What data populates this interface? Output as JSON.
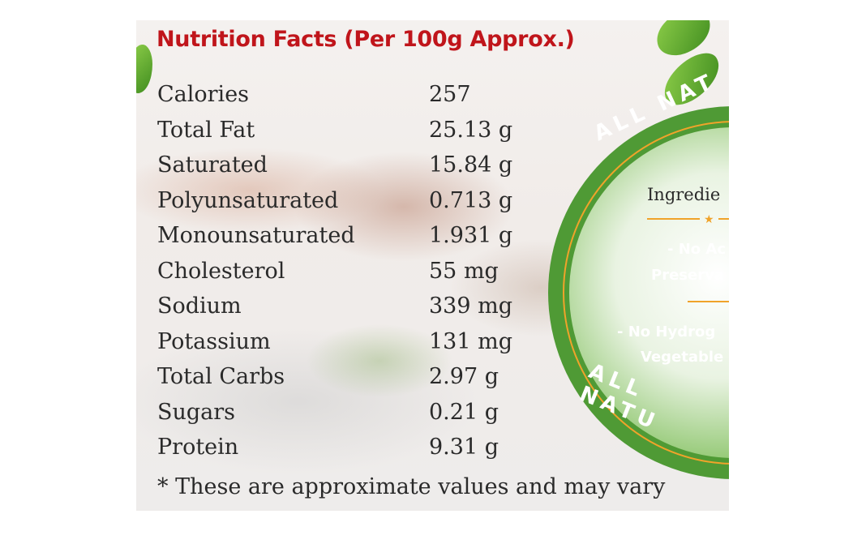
{
  "title": "Nutrition Facts (Per 100g Approx.)",
  "nutrients": [
    {
      "label": "Calories",
      "value": "257"
    },
    {
      "label": "Total Fat",
      "value": "25.13 g"
    },
    {
      "label": "Saturated",
      "value": "15.84 g"
    },
    {
      "label": "Polyunsaturated",
      "value": "0.713 g"
    },
    {
      "label": "Monounsaturated",
      "value": "1.931 g"
    },
    {
      "label": "Cholesterol",
      "value": "55 mg"
    },
    {
      "label": "Sodium",
      "value": "339 mg"
    },
    {
      "label": "Potassium",
      "value": "131 mg"
    },
    {
      "label": "Total Carbs",
      "value": "2.97 g"
    },
    {
      "label": "Sugars",
      "value": "0.21 g"
    },
    {
      "label": "Protein",
      "value": "9.31 g"
    }
  ],
  "footnote": "* These are approximate values and may vary",
  "badge": {
    "top_arc": "ALL NAT",
    "bottom_arc": "ALL NATU",
    "ingredients_heading": "Ingredie",
    "claim1_line1": "- No Ac",
    "claim1_line2": "Preserva",
    "claim2_line1": "- No Hydrog",
    "claim2_line2": "Vegetable"
  },
  "colors": {
    "title_red": "#c0151b",
    "badge_green": "#4f9a35",
    "accent_orange": "#f0a32a"
  }
}
